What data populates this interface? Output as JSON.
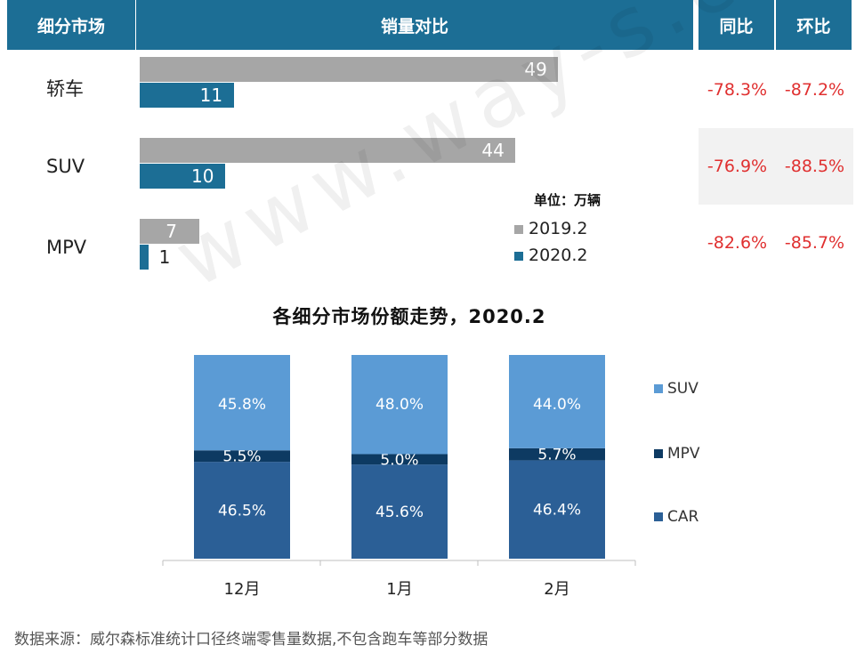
{
  "header": {
    "segment": "细分市场",
    "compare": "销量对比",
    "yoy": "同比",
    "mom": "环比"
  },
  "unit_label": "单位：万辆",
  "legend_top": [
    "2019.2",
    "2020.2"
  ],
  "chart2_title": "各细分市场份额走势，2020.2",
  "legend_bottom": [
    "SUV",
    "MPV",
    "CAR"
  ],
  "footer": "数据来源：威尔森标准统计口径终端零售量数据,不包含跑车等部分数据",
  "watermark": "www.way-s.cn",
  "colors": {
    "header_bg": "#1c6e95",
    "bar_2019": "#a6a6a6",
    "bar_2020": "#1c6e95",
    "negative_pct": "#e03030",
    "suv": "#5b9bd5",
    "mpv": "#0d3a62",
    "car": "#2b5f96"
  },
  "chart_data": [
    {
      "type": "bar",
      "orientation": "horizontal",
      "categories": [
        "轿车",
        "SUV",
        "MPV"
      ],
      "series": [
        {
          "name": "2019.2",
          "values": [
            49,
            44,
            7
          ]
        },
        {
          "name": "2020.2",
          "values": [
            11,
            10,
            1
          ]
        }
      ],
      "unit": "万辆",
      "yoy": [
        "-78.3%",
        "-76.9%",
        "-82.6%"
      ],
      "mom": [
        "-87.2%",
        "-88.5%",
        "-85.7%"
      ]
    },
    {
      "type": "bar",
      "stacked": true,
      "title": "各细分市场份额走势，2020.2",
      "categories": [
        "12月",
        "1月",
        "2月"
      ],
      "series": [
        {
          "name": "CAR",
          "values": [
            46.5,
            45.6,
            46.4
          ],
          "labels": [
            "46.5%",
            "45.6%",
            "46.4%"
          ]
        },
        {
          "name": "MPV",
          "values": [
            5.5,
            5.0,
            5.7
          ],
          "labels": [
            "5.5%",
            "5.0%",
            "5.7%"
          ]
        },
        {
          "name": "SUV",
          "values": [
            45.8,
            48.0,
            44.0
          ],
          "labels": [
            "45.8%",
            "48.0%",
            "44.0%"
          ]
        }
      ],
      "ylim": [
        0,
        100
      ]
    }
  ]
}
